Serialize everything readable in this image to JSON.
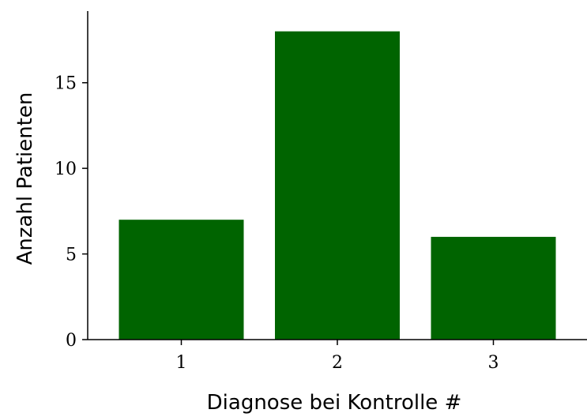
{
  "chart_data": {
    "type": "bar",
    "categories": [
      "1",
      "2",
      "3"
    ],
    "values": [
      7,
      18,
      6
    ],
    "xlabel": "Diagnose bei Kontrolle #",
    "ylabel": "Anzahl Patienten",
    "ylim": [
      0,
      19
    ],
    "yticks": [
      0,
      5,
      10,
      15
    ],
    "bar_color": "#006400",
    "grid": false
  }
}
